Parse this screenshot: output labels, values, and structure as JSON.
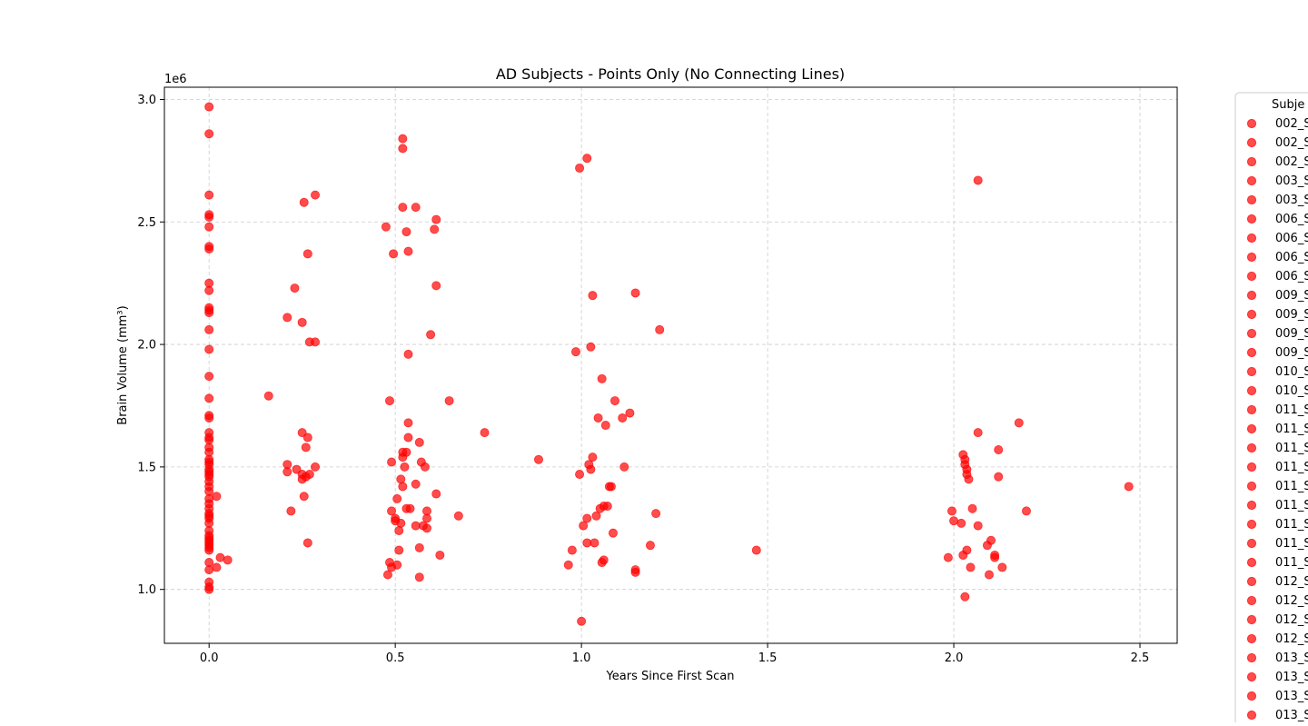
{
  "chart_data": {
    "type": "scatter",
    "title": "AD Subjects - Points Only (No Connecting Lines)",
    "xlabel": "Years Since First Scan",
    "ylabel": "Brain Volume (mm³)",
    "y_offset_text": "1e6",
    "xlim": [
      -0.12,
      2.6
    ],
    "ylim": [
      780000,
      3050000
    ],
    "xticks": [
      0.0,
      0.5,
      1.0,
      1.5,
      2.0,
      2.5
    ],
    "xtick_labels": [
      "0.0",
      "0.5",
      "1.0",
      "1.5",
      "2.0",
      "2.5"
    ],
    "yticks": [
      1000000,
      1500000,
      2000000,
      2500000,
      3000000
    ],
    "ytick_labels": [
      "1.0",
      "1.5",
      "2.0",
      "2.5",
      "3.0"
    ],
    "grid": true,
    "marker_color": "#ff0000",
    "marker_alpha": 0.7,
    "legend": {
      "title": "Subje",
      "placement": "outside-right",
      "entries": [
        "002_S",
        "002_S",
        "002_S",
        "003_S",
        "003_S",
        "006_S",
        "006_S",
        "006_S",
        "006_S",
        "009_S",
        "009_S",
        "009_S",
        "009_S",
        "010_S",
        "010_S",
        "011_S",
        "011_S",
        "011_S",
        "011_S",
        "011_S",
        "011_S",
        "011_S",
        "011_S",
        "011_S",
        "012_S",
        "012_S",
        "012_S",
        "012_S",
        "013_S",
        "013_S",
        "013_S",
        "013_S"
      ]
    },
    "points": [
      [
        0,
        2970000
      ],
      [
        0,
        2860000
      ],
      [
        0,
        2610000
      ],
      [
        0,
        2530000
      ],
      [
        0,
        2520000
      ],
      [
        0,
        2480000
      ],
      [
        0,
        2400000
      ],
      [
        0,
        2390000
      ],
      [
        0,
        2250000
      ],
      [
        0,
        2220000
      ],
      [
        0,
        2150000
      ],
      [
        0,
        2140000
      ],
      [
        0,
        2130000
      ],
      [
        0,
        2060000
      ],
      [
        0,
        1980000
      ],
      [
        0,
        1870000
      ],
      [
        0,
        1780000
      ],
      [
        0,
        1710000
      ],
      [
        0,
        1700000
      ],
      [
        0,
        1640000
      ],
      [
        0,
        1620000
      ],
      [
        0,
        1610000
      ],
      [
        0,
        1580000
      ],
      [
        0,
        1560000
      ],
      [
        0,
        1530000
      ],
      [
        0,
        1520000
      ],
      [
        0,
        1510000
      ],
      [
        0,
        1490000
      ],
      [
        0,
        1480000
      ],
      [
        0,
        1470000
      ],
      [
        0,
        1460000
      ],
      [
        0,
        1440000
      ],
      [
        0,
        1420000
      ],
      [
        0,
        1400000
      ],
      [
        0,
        1370000
      ],
      [
        0,
        1350000
      ],
      [
        0,
        1330000
      ],
      [
        0,
        1310000
      ],
      [
        0,
        1300000
      ],
      [
        0,
        1290000
      ],
      [
        0,
        1270000
      ],
      [
        0,
        1240000
      ],
      [
        0,
        1220000
      ],
      [
        0,
        1210000
      ],
      [
        0,
        1200000
      ],
      [
        0,
        1190000
      ],
      [
        0,
        1180000
      ],
      [
        0,
        1170000
      ],
      [
        0,
        1160000
      ],
      [
        0,
        1110000
      ],
      [
        0,
        1080000
      ],
      [
        0,
        1030000
      ],
      [
        0,
        1010000
      ],
      [
        0,
        1000000
      ],
      [
        0.02,
        1380000
      ],
      [
        0.02,
        1090000
      ],
      [
        0.03,
        1130000
      ],
      [
        0.05,
        1120000
      ],
      [
        0.16,
        1790000
      ],
      [
        0.21,
        2110000
      ],
      [
        0.21,
        1510000
      ],
      [
        0.21,
        1480000
      ],
      [
        0.22,
        1320000
      ],
      [
        0.23,
        2230000
      ],
      [
        0.235,
        1490000
      ],
      [
        0.25,
        2090000
      ],
      [
        0.25,
        1640000
      ],
      [
        0.25,
        1470000
      ],
      [
        0.25,
        1450000
      ],
      [
        0.255,
        2580000
      ],
      [
        0.255,
        1380000
      ],
      [
        0.26,
        1580000
      ],
      [
        0.26,
        1460000
      ],
      [
        0.265,
        2370000
      ],
      [
        0.265,
        1620000
      ],
      [
        0.265,
        1190000
      ],
      [
        0.27,
        2010000
      ],
      [
        0.27,
        1470000
      ],
      [
        0.285,
        2610000
      ],
      [
        0.285,
        2010000
      ],
      [
        0.285,
        1500000
      ],
      [
        0.475,
        2480000
      ],
      [
        0.48,
        1060000
      ],
      [
        0.485,
        1770000
      ],
      [
        0.485,
        1110000
      ],
      [
        0.49,
        1520000
      ],
      [
        0.49,
        1320000
      ],
      [
        0.49,
        1090000
      ],
      [
        0.495,
        2370000
      ],
      [
        0.5,
        1290000
      ],
      [
        0.5,
        1280000
      ],
      [
        0.505,
        1370000
      ],
      [
        0.505,
        1100000
      ],
      [
        0.51,
        1240000
      ],
      [
        0.51,
        1160000
      ],
      [
        0.515,
        1450000
      ],
      [
        0.515,
        1270000
      ],
      [
        0.52,
        2840000
      ],
      [
        0.52,
        2800000
      ],
      [
        0.52,
        2560000
      ],
      [
        0.52,
        1540000
      ],
      [
        0.52,
        1560000
      ],
      [
        0.52,
        1420000
      ],
      [
        0.525,
        1500000
      ],
      [
        0.53,
        2460000
      ],
      [
        0.53,
        1560000
      ],
      [
        0.53,
        1330000
      ],
      [
        0.535,
        2380000
      ],
      [
        0.535,
        1960000
      ],
      [
        0.535,
        1680000
      ],
      [
        0.535,
        1620000
      ],
      [
        0.54,
        1330000
      ],
      [
        0.555,
        2560000
      ],
      [
        0.555,
        1430000
      ],
      [
        0.555,
        1260000
      ],
      [
        0.565,
        1600000
      ],
      [
        0.565,
        1170000
      ],
      [
        0.565,
        1050000
      ],
      [
        0.57,
        1520000
      ],
      [
        0.575,
        1260000
      ],
      [
        0.58,
        1500000
      ],
      [
        0.585,
        1320000
      ],
      [
        0.585,
        1290000
      ],
      [
        0.585,
        1250000
      ],
      [
        0.595,
        2040000
      ],
      [
        0.605,
        2470000
      ],
      [
        0.61,
        2510000
      ],
      [
        0.61,
        1390000
      ],
      [
        0.61,
        2240000
      ],
      [
        0.62,
        1140000
      ],
      [
        0.645,
        1770000
      ],
      [
        0.67,
        1300000
      ],
      [
        0.74,
        1640000
      ],
      [
        0.885,
        1530000
      ],
      [
        0.965,
        1100000
      ],
      [
        0.975,
        1160000
      ],
      [
        0.985,
        1970000
      ],
      [
        0.995,
        2720000
      ],
      [
        0.995,
        1470000
      ],
      [
        1.0,
        870000
      ],
      [
        1.005,
        1260000
      ],
      [
        1.015,
        2760000
      ],
      [
        1.015,
        1290000
      ],
      [
        1.015,
        1190000
      ],
      [
        1.02,
        1510000
      ],
      [
        1.025,
        1990000
      ],
      [
        1.025,
        1490000
      ],
      [
        1.03,
        1540000
      ],
      [
        1.03,
        2200000
      ],
      [
        1.035,
        1190000
      ],
      [
        1.04,
        1300000
      ],
      [
        1.045,
        1700000
      ],
      [
        1.05,
        1330000
      ],
      [
        1.055,
        1860000
      ],
      [
        1.055,
        1110000
      ],
      [
        1.06,
        1340000
      ],
      [
        1.06,
        1120000
      ],
      [
        1.065,
        1670000
      ],
      [
        1.07,
        1340000
      ],
      [
        1.075,
        1420000
      ],
      [
        1.08,
        1420000
      ],
      [
        1.085,
        1230000
      ],
      [
        1.09,
        1770000
      ],
      [
        1.11,
        1700000
      ],
      [
        1.115,
        1500000
      ],
      [
        1.13,
        1720000
      ],
      [
        1.145,
        2210000
      ],
      [
        1.145,
        1080000
      ],
      [
        1.145,
        1070000
      ],
      [
        1.185,
        1180000
      ],
      [
        1.2,
        1310000
      ],
      [
        1.21,
        2060000
      ],
      [
        1.47,
        1160000
      ],
      [
        1.985,
        1130000
      ],
      [
        1.995,
        1320000
      ],
      [
        2.0,
        1280000
      ],
      [
        2.02,
        1270000
      ],
      [
        2.025,
        1550000
      ],
      [
        2.025,
        1140000
      ],
      [
        2.03,
        1530000
      ],
      [
        2.03,
        1510000
      ],
      [
        2.035,
        1470000
      ],
      [
        2.035,
        1490000
      ],
      [
        2.03,
        970000
      ],
      [
        2.035,
        1160000
      ],
      [
        2.04,
        1450000
      ],
      [
        2.045,
        1090000
      ],
      [
        2.05,
        1330000
      ],
      [
        2.065,
        2670000
      ],
      [
        2.065,
        1640000
      ],
      [
        2.065,
        1260000
      ],
      [
        2.09,
        1180000
      ],
      [
        2.095,
        1060000
      ],
      [
        2.1,
        1200000
      ],
      [
        2.11,
        1140000
      ],
      [
        2.11,
        1130000
      ],
      [
        2.12,
        1570000
      ],
      [
        2.12,
        1460000
      ],
      [
        2.13,
        1090000
      ],
      [
        2.175,
        1680000
      ],
      [
        2.195,
        1320000
      ],
      [
        2.47,
        1420000
      ]
    ]
  }
}
